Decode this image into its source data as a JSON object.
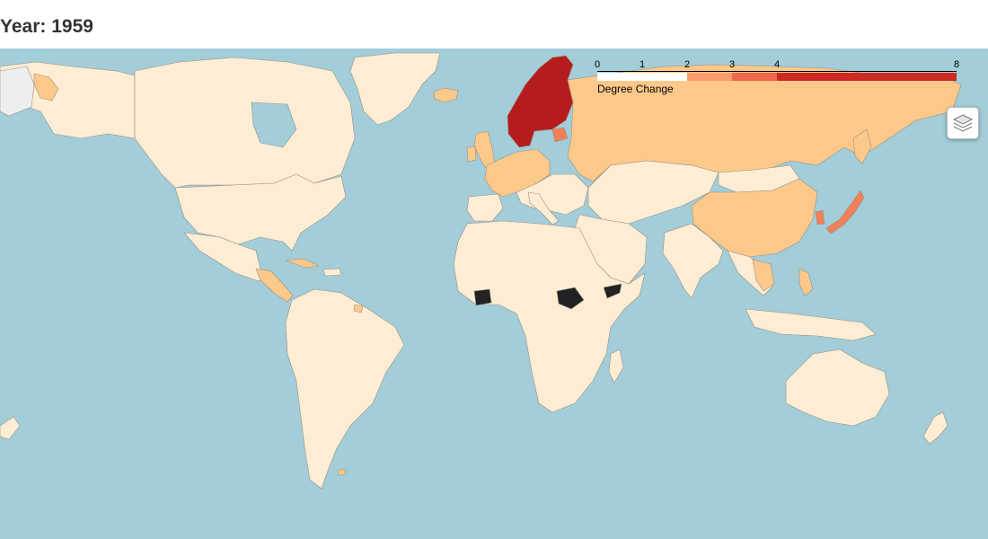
{
  "title": "Year: 1959",
  "legend": {
    "caption": "Degree Change",
    "ticks": [
      {
        "label": "0",
        "value": 0
      },
      {
        "label": "1",
        "value": 1
      },
      {
        "label": "2",
        "value": 2
      },
      {
        "label": "3",
        "value": 3
      },
      {
        "label": "4",
        "value": 4
      },
      {
        "label": "8",
        "value": 8
      }
    ],
    "domain": [
      0,
      8
    ],
    "bins": [
      {
        "from": 0,
        "to": 2,
        "color": "#ffffff"
      },
      {
        "from": 2,
        "to": 3,
        "color": "#fc9b6c"
      },
      {
        "from": 3,
        "to": 4,
        "color": "#f0674a"
      },
      {
        "from": 4,
        "to": 8,
        "color": "#cf2a22"
      }
    ]
  },
  "colors": {
    "ocean": "#a2cdd9",
    "no_change": "#feedd5",
    "low": "#fdc98a",
    "mid": "#f0805a",
    "high": "#b51d1d",
    "no_data": "#222222"
  },
  "layers_control_icon": "layers-icon"
}
